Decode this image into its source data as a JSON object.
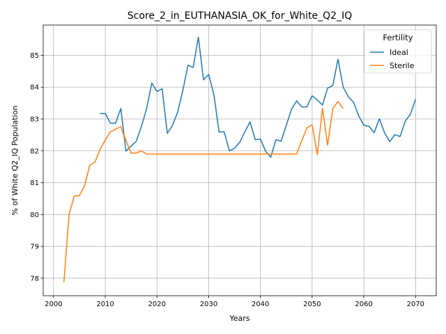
{
  "chart_data": {
    "type": "line",
    "title": "Score_2_in_EUTHANASIA_OK_for_White_Q2_IQ",
    "xlabel": "Years",
    "ylabel": "% of White Q2_IQ Population",
    "xlim": [
      1998,
      2074
    ],
    "ylim": [
      77.45,
      85.95
    ],
    "xticks": [
      2000,
      2010,
      2020,
      2030,
      2040,
      2050,
      2060,
      2070
    ],
    "yticks": [
      78,
      79,
      80,
      81,
      82,
      83,
      84,
      85
    ],
    "grid": true,
    "legend": {
      "title": "Fertility",
      "placement": "top-right"
    },
    "series": [
      {
        "name": "Ideal",
        "color": "#1f77b4",
        "x": [
          2009,
          2010,
          2011,
          2012,
          2013,
          2014,
          2015,
          2016,
          2017,
          2018,
          2019,
          2020,
          2021,
          2022,
          2023,
          2024,
          2025,
          2026,
          2027,
          2028,
          2029,
          2030,
          2031,
          2032,
          2033,
          2034,
          2035,
          2036,
          2037,
          2038,
          2039,
          2040,
          2041,
          2042,
          2043,
          2044,
          2045,
          2046,
          2047,
          2048,
          2049,
          2050,
          2051,
          2052,
          2053,
          2054,
          2055,
          2056,
          2057,
          2058,
          2059,
          2060,
          2061,
          2062,
          2063,
          2064,
          2065,
          2066,
          2067,
          2068,
          2069,
          2070
        ],
        "y": [
          83.17,
          83.17,
          82.87,
          82.87,
          83.33,
          81.99,
          82.15,
          82.3,
          82.77,
          83.33,
          84.13,
          83.86,
          83.95,
          82.55,
          82.8,
          83.22,
          83.9,
          84.69,
          84.62,
          85.57,
          84.23,
          84.4,
          83.77,
          82.59,
          82.6,
          82.0,
          82.08,
          82.27,
          82.6,
          82.91,
          82.35,
          82.37,
          81.99,
          81.8,
          82.35,
          82.3,
          82.8,
          83.3,
          83.57,
          83.38,
          83.38,
          83.73,
          83.6,
          83.44,
          83.97,
          84.05,
          84.88,
          84.0,
          83.7,
          83.53,
          83.1,
          82.8,
          82.77,
          82.57,
          83.01,
          82.57,
          82.29,
          82.51,
          82.45,
          82.93,
          83.15,
          83.62
        ]
      },
      {
        "name": "Sterile",
        "color": "#ff7f0e",
        "x": [
          2002,
          2003,
          2004,
          2005,
          2006,
          2007,
          2008,
          2009,
          2010,
          2011,
          2012,
          2013,
          2014,
          2015,
          2016,
          2017,
          2018,
          2019,
          2020,
          2021,
          2022,
          2023,
          2024,
          2025,
          2026,
          2027,
          2028,
          2029,
          2030,
          2031,
          2032,
          2033,
          2034,
          2035,
          2036,
          2037,
          2038,
          2039,
          2040,
          2041,
          2042,
          2043,
          2044,
          2045,
          2046,
          2047,
          2048,
          2049,
          2050,
          2051,
          2052,
          2053,
          2054,
          2055,
          2056
        ],
        "y": [
          77.88,
          80.0,
          80.58,
          80.59,
          80.91,
          81.55,
          81.64,
          82.05,
          82.34,
          82.6,
          82.68,
          82.76,
          82.32,
          81.93,
          81.93,
          82.0,
          81.9,
          81.9,
          81.9,
          81.9,
          81.9,
          81.9,
          81.9,
          81.9,
          81.9,
          81.9,
          81.9,
          81.9,
          81.9,
          81.9,
          81.9,
          81.9,
          81.9,
          81.9,
          81.9,
          81.9,
          81.9,
          81.9,
          81.9,
          81.9,
          81.9,
          81.9,
          81.9,
          81.9,
          81.9,
          81.9,
          82.32,
          82.72,
          82.82,
          81.88,
          83.33,
          82.18,
          83.33,
          83.55,
          83.33
        ]
      }
    ]
  }
}
